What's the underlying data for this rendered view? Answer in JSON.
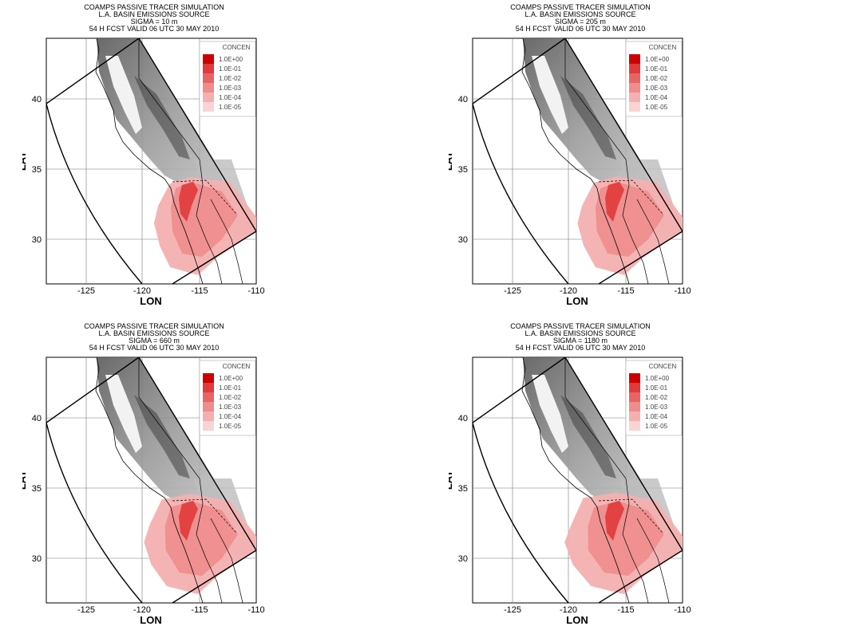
{
  "legend": {
    "title": "CONCEN",
    "levels": [
      "1.0E+00",
      "1.0E-01",
      "1.0E-02",
      "1.0E-03",
      "1.0E-04",
      "1.0E-05"
    ],
    "colors": [
      "#cc0000",
      "#e03a3a",
      "#e86464",
      "#ef8c8c",
      "#f4b0b0",
      "#f9d4d4"
    ]
  },
  "axes": {
    "xlabel": "LON",
    "ylabel": "LAT",
    "xticks": [
      "-125",
      "-120",
      "-115",
      "-110"
    ],
    "yticks": [
      "40",
      "35",
      "30"
    ]
  },
  "panels": [
    {
      "title1": "COAMPS PASSIVE TRACER SIMULATION",
      "title2": "L.A. BASIN EMISSIONS SOURCE",
      "title3": "SIGMA = 10 m",
      "title4": "54 H FCST VALID 06 UTC 30 MAY 2010"
    },
    {
      "title1": "COAMPS PASSIVE TRACER SIMULATION",
      "title2": "L.A. BASIN EMISSIONS SOURCE",
      "title3": "SIGMA = 205 m",
      "title4": "54 H FCST VALID 06 UTC 30 MAY 2010"
    },
    {
      "title1": "COAMPS PASSIVE TRACER SIMULATION",
      "title2": "L.A. BASIN EMISSIONS SOURCE",
      "title3": "SIGMA = 660 m",
      "title4": "54 H FCST VALID 06 UTC 30 MAY 2010"
    },
    {
      "title1": "COAMPS PASSIVE TRACER SIMULATION",
      "title2": "L.A. BASIN EMISSIONS SOURCE",
      "title3": "SIGMA = 1180 m",
      "title4": "54 H FCST VALID 06 UTC 30 MAY 2010"
    }
  ]
}
